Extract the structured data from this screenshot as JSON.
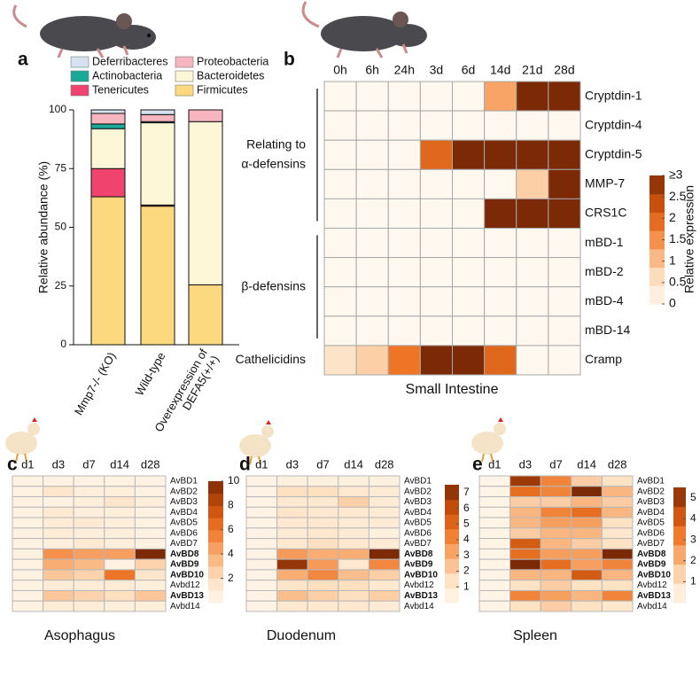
{
  "chart_data": [
    {
      "type": "bar",
      "stacked": true,
      "label": "a",
      "ylabel": "Relative abundance (%)",
      "categories": [
        [
          "Mmp7-/- (KO)"
        ],
        [
          "Wild-type"
        ],
        [
          "Overexpression of",
          "DEFA5(+/+)"
        ]
      ],
      "series": [
        {
          "name": "Firmicutes",
          "color": "#fcd97e",
          "values": [
            63,
            59,
            25.5
          ]
        },
        {
          "name": "Tenericutes",
          "color": "#f0436e",
          "values": [
            12,
            0.5,
            0
          ]
        },
        {
          "name": "Bacteroidetes",
          "color": "#fdf7d8",
          "values": [
            17,
            35,
            69.5
          ]
        },
        {
          "name": "Actinobacteria",
          "color": "#1aa898",
          "values": [
            2,
            0.5,
            0
          ]
        },
        {
          "name": "Proteobacteria",
          "color": "#f7b5bf",
          "values": [
            4.5,
            3,
            5
          ]
        },
        {
          "name": "Deferribacteres",
          "color": "#d6e2f0",
          "values": [
            1.5,
            2,
            0
          ]
        }
      ],
      "ylim": [
        0,
        100
      ],
      "yticks": [
        0,
        25,
        50,
        75,
        100
      ]
    },
    {
      "type": "heatmap",
      "label": "b",
      "xlabel": "Small Intestine",
      "x": [
        "0h",
        "6h",
        "24h",
        "3d",
        "6d",
        "14d",
        "21d",
        "28d"
      ],
      "y": [
        "Cryptdin-1",
        "Cryptdin-4",
        "Cryptdin-5",
        "MMP-7",
        "CRS1C",
        "mBD-1",
        "mBD-2",
        "mBD-4",
        "mBD-14",
        "Cramp"
      ],
      "values": [
        [
          0,
          0,
          0,
          0,
          0,
          1.3,
          3,
          3
        ],
        [
          0,
          0,
          0,
          0,
          0,
          0,
          0,
          0
        ],
        [
          0,
          0,
          0,
          2,
          3,
          3,
          3,
          3
        ],
        [
          0,
          0,
          0,
          0,
          0,
          0,
          0.8,
          3
        ],
        [
          0,
          0,
          0,
          0,
          0,
          3,
          3,
          3
        ],
        [
          0,
          0,
          0,
          0,
          0,
          0,
          0,
          0
        ],
        [
          0,
          0,
          0,
          0,
          0,
          0,
          0,
          0
        ],
        [
          0,
          0,
          0,
          0,
          0,
          0,
          0,
          0
        ],
        [
          0,
          0,
          0,
          0,
          0,
          0,
          0,
          0
        ],
        [
          0.5,
          0.8,
          1.8,
          3,
          3,
          2,
          0,
          0
        ]
      ],
      "clim": [
        0,
        3
      ],
      "cticks": [
        0,
        0.5,
        1,
        1.5,
        2,
        2.5,
        {
          "value": 3,
          "label": "≥3"
        }
      ],
      "clabel": "Relative expression",
      "colors": [
        "#fff8ee",
        "#fde0c0",
        "#f9ad73",
        "#ee7526",
        "#c44d0b",
        "#7c2a05"
      ],
      "row_groups": [
        {
          "label": [
            "Relating to",
            "α-defensins"
          ],
          "first": "Cryptdin-1",
          "last": "CRS1C"
        },
        {
          "label": [
            "β-defensins"
          ],
          "first": "mBD-1",
          "last": "mBD-14"
        },
        {
          "label": [
            "Cathelicidins"
          ],
          "first": "Cramp",
          "last": "Cramp"
        }
      ]
    },
    {
      "type": "heatmap",
      "label": "c",
      "title": "Asophagus",
      "x": [
        "d1",
        "d3",
        "d7",
        "d14",
        "d28"
      ],
      "y": [
        "AvBD1",
        "AvBD2",
        "AvBD3",
        "AvBD4",
        "AvBD5",
        "AvBD6",
        "AvBD7",
        "AvBD8",
        "AvBD9",
        "AvBD10",
        "Avbd12",
        "AvBD13",
        "Avbd14"
      ],
      "values": [
        [
          0.5,
          0.5,
          0.5,
          0.5,
          0.5
        ],
        [
          0.5,
          1.5,
          0.8,
          0.8,
          0.5
        ],
        [
          0.5,
          0.5,
          0.8,
          1.5,
          0.8
        ],
        [
          0.5,
          1.2,
          0.8,
          0.8,
          0.5
        ],
        [
          0.5,
          1,
          1.2,
          0.8,
          0.5
        ],
        [
          0.5,
          1,
          0.8,
          0.8,
          0.5
        ],
        [
          0.5,
          0.8,
          1.2,
          0.8,
          0.5
        ],
        [
          0.5,
          5,
          4.5,
          4.5,
          10
        ],
        [
          0.5,
          4,
          3.5,
          0.5,
          2.5
        ],
        [
          0.5,
          3,
          2.5,
          6,
          1.5
        ],
        [
          0.5,
          1,
          1,
          1,
          0.8
        ],
        [
          0.5,
          3,
          2.5,
          2,
          3
        ],
        [
          0.5,
          1,
          1,
          0.8,
          0.8
        ]
      ],
      "clim": [
        0,
        10
      ],
      "cticks": [
        2,
        4,
        6,
        8,
        10
      ],
      "colors": [
        "#fff8ee",
        "#fde0c0",
        "#f9ad73",
        "#ee7526",
        "#c44d0b",
        "#7c2a05"
      ],
      "highlight_rows": [
        "AvBD8",
        "AvBD9",
        "AvBD10",
        "AvBD13"
      ],
      "highlight_color": "#e3191c"
    },
    {
      "type": "heatmap",
      "label": "d",
      "title": "Duodenum",
      "x": [
        "d1",
        "d3",
        "d7",
        "d14",
        "d28"
      ],
      "y": [
        "AvBD1",
        "AvBD2",
        "AvBD3",
        "AvBD4",
        "AvBD5",
        "AvBD6",
        "AvBD7",
        "AvBD8",
        "AvBD9",
        "AvBD10",
        "Avbd12",
        "AvBD13",
        "Avbd14"
      ],
      "values": [
        [
          0.3,
          0.5,
          0.5,
          0.5,
          0.5
        ],
        [
          0.3,
          1.5,
          1.5,
          1,
          0.8
        ],
        [
          0.3,
          1,
          1,
          2,
          0.8
        ],
        [
          0.3,
          1.2,
          1,
          1,
          0.8
        ],
        [
          0.3,
          1,
          1,
          0.8,
          0.8
        ],
        [
          0.3,
          0.8,
          1,
          0.8,
          0.5
        ],
        [
          0.3,
          1,
          1.5,
          1,
          0.8
        ],
        [
          0.3,
          3.5,
          3,
          3,
          7.5
        ],
        [
          0.3,
          7,
          3.5,
          1,
          4
        ],
        [
          0.3,
          3,
          4,
          2.5,
          2
        ],
        [
          0.3,
          1.2,
          1.5,
          1.5,
          1
        ],
        [
          0.3,
          2.5,
          2,
          1.5,
          2
        ],
        [
          0.3,
          1,
          1,
          1,
          0.8
        ]
      ],
      "clim": [
        0,
        7.5
      ],
      "cticks": [
        1,
        2,
        3,
        4,
        5,
        6,
        7
      ],
      "colors": [
        "#fff8ee",
        "#fde0c0",
        "#f9ad73",
        "#ee7526",
        "#c44d0b",
        "#7c2a05"
      ],
      "highlight_rows": [
        "AvBD8",
        "AvBD9",
        "AvBD10",
        "AvBD13"
      ],
      "highlight_color": "#e3191c"
    },
    {
      "type": "heatmap",
      "label": "e",
      "title": "Spleen",
      "x": [
        "d1",
        "d3",
        "d7",
        "d14",
        "d28"
      ],
      "y": [
        "AvBD1",
        "AvBD2",
        "AvBD3",
        "AvBD4",
        "AvBD5",
        "AvBD6",
        "AvBD7",
        "AvBD8",
        "AvBD9",
        "AvBD10",
        "Avbd12",
        "AvBD13",
        "Avbd14"
      ],
      "values": [
        [
          0.2,
          5,
          3,
          1.5,
          1
        ],
        [
          0.2,
          3.5,
          3,
          5.5,
          2
        ],
        [
          0.2,
          1.5,
          1.5,
          2,
          1.5
        ],
        [
          0.2,
          2,
          3,
          3.5,
          2
        ],
        [
          0.2,
          2,
          2.5,
          2.5,
          1
        ],
        [
          0.2,
          1.5,
          2,
          2,
          0.8
        ],
        [
          0.2,
          4,
          2,
          1.5,
          1
        ],
        [
          0.2,
          3.5,
          2.5,
          2.5,
          5.5
        ],
        [
          0.2,
          5.5,
          3.5,
          2.5,
          3
        ],
        [
          0.2,
          2,
          2,
          4,
          2
        ],
        [
          0.2,
          1,
          1.5,
          1,
          1
        ],
        [
          0.2,
          3,
          2.5,
          2,
          3
        ],
        [
          0.2,
          1,
          1.5,
          1,
          0.8
        ]
      ],
      "clim": [
        0,
        5.5
      ],
      "cticks": [
        1,
        2,
        3,
        4,
        5
      ],
      "colors": [
        "#fff8ee",
        "#fde0c0",
        "#f9ad73",
        "#ee7526",
        "#c44d0b",
        "#7c2a05"
      ],
      "highlight_rows": [
        "AvBD8",
        "AvBD9",
        "AvBD10",
        "AvBD13"
      ],
      "highlight_color": "#e3191c"
    }
  ]
}
